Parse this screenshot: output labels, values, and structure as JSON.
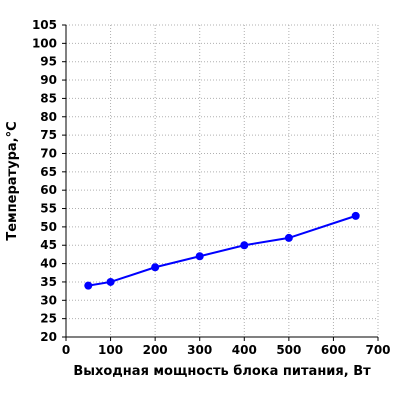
{
  "chart_data": {
    "type": "line",
    "title": "",
    "xlabel": "Выходная мощность блока питания, Вт",
    "ylabel": "Температура,°C",
    "xlim": [
      0,
      700
    ],
    "ylim": [
      20,
      105
    ],
    "xticks": [
      0,
      100,
      200,
      300,
      400,
      500,
      600,
      700
    ],
    "yticks": [
      20,
      25,
      30,
      35,
      40,
      45,
      50,
      55,
      60,
      65,
      70,
      75,
      80,
      85,
      90,
      95,
      100,
      105
    ],
    "grid": true,
    "legend": "none",
    "series": [
      {
        "x": [
          50,
          100,
          200,
          300,
          400,
          500,
          650
        ],
        "y": [
          34,
          35,
          39,
          42,
          45,
          47,
          53
        ],
        "color": "#0000ff",
        "marker": "circle"
      }
    ]
  }
}
